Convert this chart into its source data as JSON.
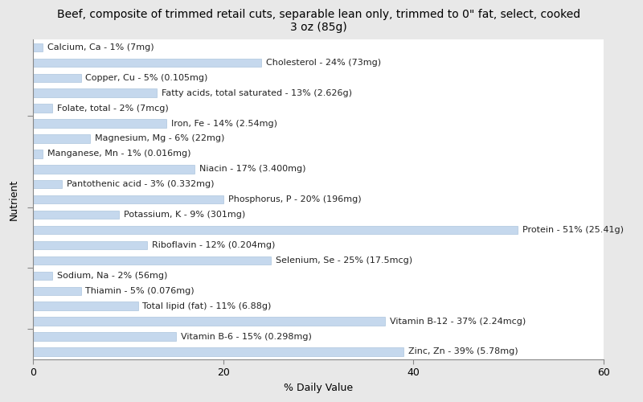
{
  "title": "Beef, composite of trimmed retail cuts, separable lean only, trimmed to 0\" fat, select, cooked\n3 oz (85g)",
  "xlabel": "% Daily Value",
  "ylabel": "Nutrient",
  "xlim": [
    0,
    60
  ],
  "xticks": [
    0,
    20,
    40,
    60
  ],
  "plot_bg_color": "#ffffff",
  "fig_bg_color": "#e8e8e8",
  "bar_color": "#c5d8ed",
  "bar_edge_color": "#a0bcd8",
  "nutrients": [
    "Calcium, Ca - 1% (7mg)",
    "Cholesterol - 24% (73mg)",
    "Copper, Cu - 5% (0.105mg)",
    "Fatty acids, total saturated - 13% (2.626g)",
    "Folate, total - 2% (7mcg)",
    "Iron, Fe - 14% (2.54mg)",
    "Magnesium, Mg - 6% (22mg)",
    "Manganese, Mn - 1% (0.016mg)",
    "Niacin - 17% (3.400mg)",
    "Pantothenic acid - 3% (0.332mg)",
    "Phosphorus, P - 20% (196mg)",
    "Potassium, K - 9% (301mg)",
    "Protein - 51% (25.41g)",
    "Riboflavin - 12% (0.204mg)",
    "Selenium, Se - 25% (17.5mcg)",
    "Sodium, Na - 2% (56mg)",
    "Thiamin - 5% (0.076mg)",
    "Total lipid (fat) - 11% (6.88g)",
    "Vitamin B-12 - 37% (2.24mcg)",
    "Vitamin B-6 - 15% (0.298mg)",
    "Zinc, Zn - 39% (5.78mg)"
  ],
  "values": [
    1,
    24,
    5,
    13,
    2,
    14,
    6,
    1,
    17,
    3,
    20,
    9,
    51,
    12,
    25,
    2,
    5,
    11,
    37,
    15,
    39
  ],
  "title_fontsize": 10,
  "label_fontsize": 8,
  "axis_label_fontsize": 9,
  "tick_fontsize": 9
}
